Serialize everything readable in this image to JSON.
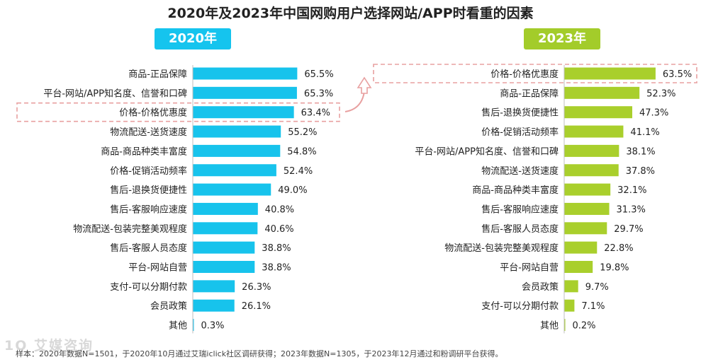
{
  "title": "2020年及2023年中国网购用户选择网站/APP时看重的因素",
  "watermark": "1O 艾媒咨询",
  "colors": {
    "bar2020": "#17c3ec",
    "bar2023": "#a9cf2c",
    "highlight": "#e8a0a0"
  },
  "footnote": "样本：2020年数据N=1501，于2020年10月通过艾瑞iclick社区调研获得；2023年数据N=1305，于2023年12月通过和粉调研平台获得。",
  "chart_data": [
    {
      "type": "bar",
      "orientation": "horizontal",
      "title": "2020年",
      "highlight": "价格-价格优惠度",
      "categories": [
        "商品-正品保障",
        "平台-网站/APP知名度、信誉和口碑",
        "价格-价格优惠度",
        "物流配送-送货速度",
        "商品-商品种类丰富度",
        "价格-促销活动频率",
        "售后-退换货便捷性",
        "售后-客服响应速度",
        "物流配送-包装完整美观程度",
        "售后-客服人员态度",
        "平台-网站自营",
        "支付-可以分期付款",
        "会员政策",
        "其他"
      ],
      "values": [
        65.5,
        65.3,
        63.4,
        55.2,
        54.8,
        52.4,
        49.0,
        40.8,
        40.6,
        38.8,
        38.8,
        26.3,
        26.1,
        0.3
      ],
      "labels": [
        "65.5%",
        "65.3%",
        "63.4%",
        "55.2%",
        "54.8%",
        "52.4%",
        "49.0%",
        "40.8%",
        "40.6%",
        "38.8%",
        "38.8%",
        "26.3%",
        "26.1%",
        "0.3%"
      ],
      "xlim": [
        0,
        100
      ]
    },
    {
      "type": "bar",
      "orientation": "horizontal",
      "title": "2023年",
      "highlight": "价格-价格优惠度",
      "categories": [
        "价格-价格优惠度",
        "商品-正品保障",
        "售后-退换货便捷性",
        "价格-促销活动频率",
        "平台-网站/APP知名度、信誉和口碑",
        "物流配送-送货速度",
        "商品-商品种类丰富度",
        "售后-客服响应速度",
        "售后-客服人员态度",
        "物流配送-包装完整美观程度",
        "平台-网站自营",
        "会员政策",
        "支付-可以分期付款",
        "其他"
      ],
      "values": [
        63.5,
        52.3,
        47.3,
        41.1,
        38.1,
        37.8,
        32.1,
        31.3,
        29.7,
        22.8,
        19.8,
        9.7,
        7.1,
        0.2
      ],
      "labels": [
        "63.5%",
        "52.3%",
        "47.3%",
        "41.1%",
        "38.1%",
        "37.8%",
        "32.1%",
        "31.3%",
        "29.7%",
        "22.8%",
        "19.8%",
        "9.7%",
        "7.1%",
        "0.2%"
      ],
      "xlim": [
        0,
        100
      ]
    }
  ]
}
